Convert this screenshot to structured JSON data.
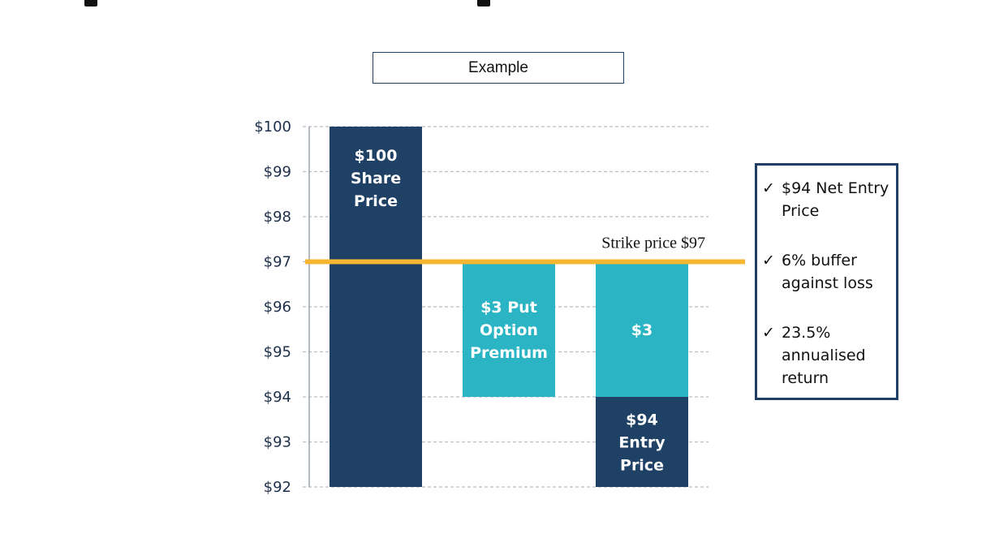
{
  "header": {
    "example_label": "Example"
  },
  "chart_data": {
    "type": "bar",
    "ylim": [
      92,
      100
    ],
    "yticks": [
      "$92",
      "$93",
      "$94",
      "$95",
      "$96",
      "$97",
      "$98",
      "$99",
      "$100"
    ],
    "grid": true,
    "bars": [
      {
        "label": "$100 Share Price",
        "lines": [
          "$100",
          "Share",
          "Price"
        ],
        "bottom": 92,
        "top": 100,
        "color": "#1f4166"
      },
      {
        "label": "$3 Put Option Premium",
        "lines": [
          "$3 Put",
          "Option",
          "Premium"
        ],
        "bottom": 94,
        "top": 97,
        "color": "#2bb5c4"
      },
      {
        "label": "$3",
        "lines": [
          "$3"
        ],
        "bottom": 94,
        "top": 97,
        "color": "#2bb5c4"
      },
      {
        "label": "$94 Entry Price",
        "lines": [
          "$94",
          "Entry",
          "Price"
        ],
        "bottom": 92,
        "top": 94,
        "color": "#1f4166"
      }
    ],
    "strike": {
      "value": 97,
      "label": "Strike price $97",
      "color": "#f5b731"
    }
  },
  "callout": {
    "check": "✓",
    "items": [
      "$94 Net Entry Price",
      "6% buffer against loss",
      "23.5% annualised return"
    ]
  }
}
